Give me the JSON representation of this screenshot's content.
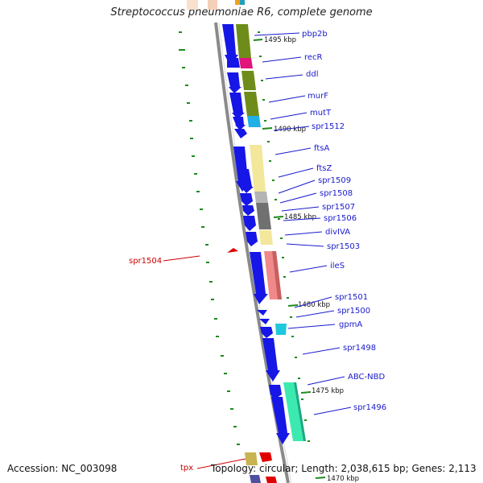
{
  "title": "Streptococcus pneumoniae R6, complete genome",
  "footer": {
    "accession": "Accession: NC_003098",
    "topology": "Topology: circular; Length: 2,038,615 bp; Genes: 2,113"
  },
  "colors": {
    "backbone": "#8a8a8a",
    "cds": "#1616e6",
    "label_blue": "#1a1acc",
    "label_red": "#d00000",
    "gc_tick": "#1e8a1e"
  },
  "scale_labels": [
    "1495 kbp",
    "1490 kbp",
    "1485 kbp",
    "1480 kbp",
    "1475 kbp",
    "1470 kbp"
  ],
  "genes": [
    {
      "name": "pbp2b",
      "color": "blue"
    },
    {
      "name": "recR",
      "color": "blue"
    },
    {
      "name": "ddl",
      "color": "blue"
    },
    {
      "name": "murF",
      "color": "blue"
    },
    {
      "name": "mutT",
      "color": "blue"
    },
    {
      "name": "spr1512",
      "color": "blue"
    },
    {
      "name": "ftsA",
      "color": "blue"
    },
    {
      "name": "ftsZ",
      "color": "blue"
    },
    {
      "name": "spr1509",
      "color": "blue"
    },
    {
      "name": "spr1508",
      "color": "blue"
    },
    {
      "name": "spr1507",
      "color": "blue"
    },
    {
      "name": "spr1506",
      "color": "blue"
    },
    {
      "name": "divIVA",
      "color": "blue"
    },
    {
      "name": "spr1503",
      "color": "blue"
    },
    {
      "name": "spr1504",
      "color": "red"
    },
    {
      "name": "ileS",
      "color": "blue"
    },
    {
      "name": "spr1501",
      "color": "blue"
    },
    {
      "name": "spr1500",
      "color": "blue"
    },
    {
      "name": "gpmA",
      "color": "blue"
    },
    {
      "name": "spr1498",
      "color": "blue"
    },
    {
      "name": "ABC-NBD",
      "color": "blue"
    },
    {
      "name": "spr1496",
      "color": "blue"
    },
    {
      "name": "tpx",
      "color": "red"
    }
  ]
}
